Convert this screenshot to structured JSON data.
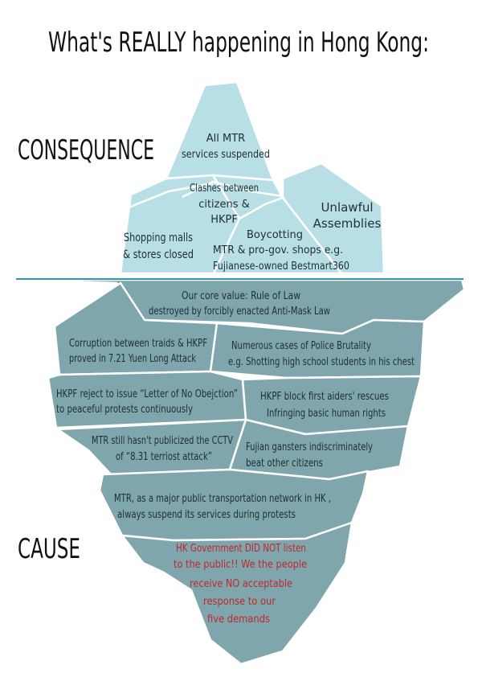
{
  "title": "What's REALLY happening in Hong Kong:",
  "labels": {
    "consequence": "CONSEQUENCE",
    "cause": "CAUSE"
  },
  "consequences": {
    "mtr_suspended": [
      "All MTR",
      "services suspended"
    ],
    "clashes": [
      "Clashes between",
      "citizens &",
      "HKPF"
    ],
    "unlawful": [
      "Unlawful",
      "Assemblies"
    ],
    "malls": [
      "Shopping malls",
      "& stores closed"
    ],
    "boycotting": [
      "Boycotting",
      "MTR & pro-gov. shops e.g.",
      "Fujianese-owned Bestmart360"
    ]
  },
  "causes": {
    "rule_of_law": [
      "Our core value:  Rule of Law",
      "destroyed by forcibly enacted Anti-Mask Law"
    ],
    "corruption": [
      "Corruption between traids & HKPF",
      "proved in 7.21 Yuen Long Attack"
    ],
    "brutality": [
      "Numerous cases of Police Brutality",
      "e.g. Shotting high school students in his chest"
    ],
    "letter": [
      "HKPF reject to issue “Letter of No Obejction”",
      "to peaceful protests continuously"
    ],
    "first_aid": [
      "HKPF block first aiders' rescues",
      "Infringing basic human rights"
    ],
    "cctv": [
      "MTR still hasn't publicized the CCTV",
      "of  “8.31 terriost attack”"
    ],
    "fujian": [
      "Fujian gansters indiscriminately",
      "beat other citizens"
    ],
    "mtr_network": [
      "MTR, as a major public transportation network in HK ,",
      "always suspend its services during protests"
    ],
    "government": [
      "HK Government DID NOT listen",
      "to the public!! We the people",
      "receive NO acceptable",
      "response to our",
      "five demands"
    ]
  },
  "colors": {
    "above_water": "#b9dfe6",
    "below_water": "#7fa6ac",
    "water_line": "#2e9aa8",
    "edge": "#ffffff",
    "emphasis_text": "#c0272d"
  }
}
